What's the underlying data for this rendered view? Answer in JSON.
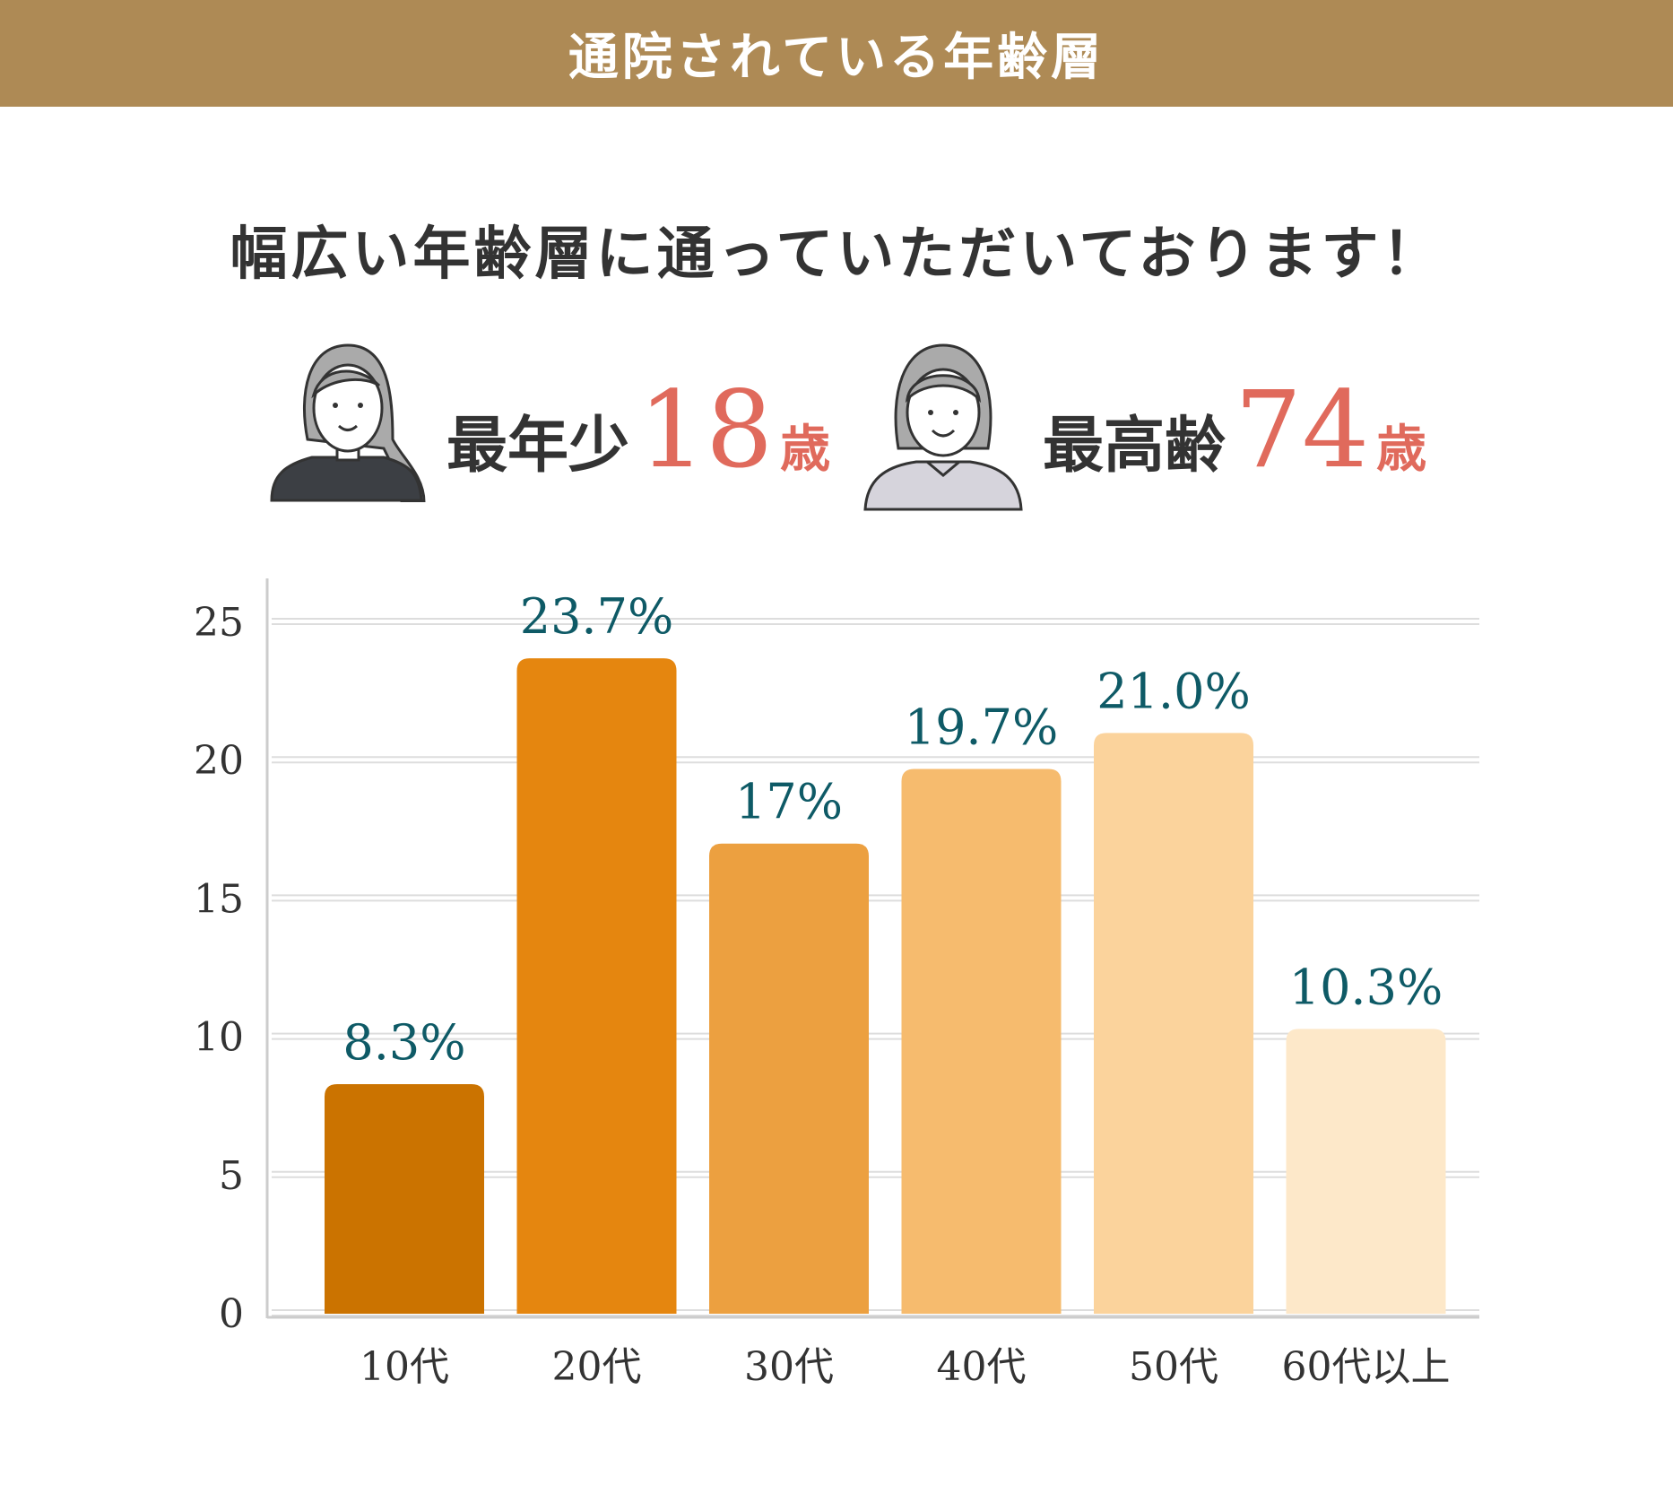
{
  "header": {
    "title": "通院されている年齢層"
  },
  "subtitle": "幅広い年齢層に通っていただいております！",
  "youngest": {
    "label": "最年少",
    "age": "18",
    "unit": "歳",
    "icon": "young-woman-icon"
  },
  "oldest": {
    "label": "最高齢",
    "age": "74",
    "unit": "歳",
    "icon": "elderly-woman-icon"
  },
  "colors": {
    "header": "#ae8a55",
    "accent": "#e06a5c",
    "data_label": "#0e5a66"
  },
  "chart_data": {
    "type": "bar",
    "categories": [
      "10代",
      "20代",
      "30代",
      "40代",
      "50代",
      "60代以上"
    ],
    "values": [
      8.3,
      23.7,
      17,
      19.7,
      21.0,
      10.3
    ],
    "data_labels": [
      "8.3%",
      "23.7%",
      "17%",
      "19.7%",
      "21.0%",
      "10.3%"
    ],
    "colors": [
      "#cb7300",
      "#e5860f",
      "#eca040",
      "#f6bb6e",
      "#fbd39c",
      "#fde8c9"
    ],
    "yticks": [
      "0",
      "5",
      "10",
      "15",
      "20",
      "25"
    ],
    "ylim": [
      0,
      25
    ],
    "grid": true
  }
}
